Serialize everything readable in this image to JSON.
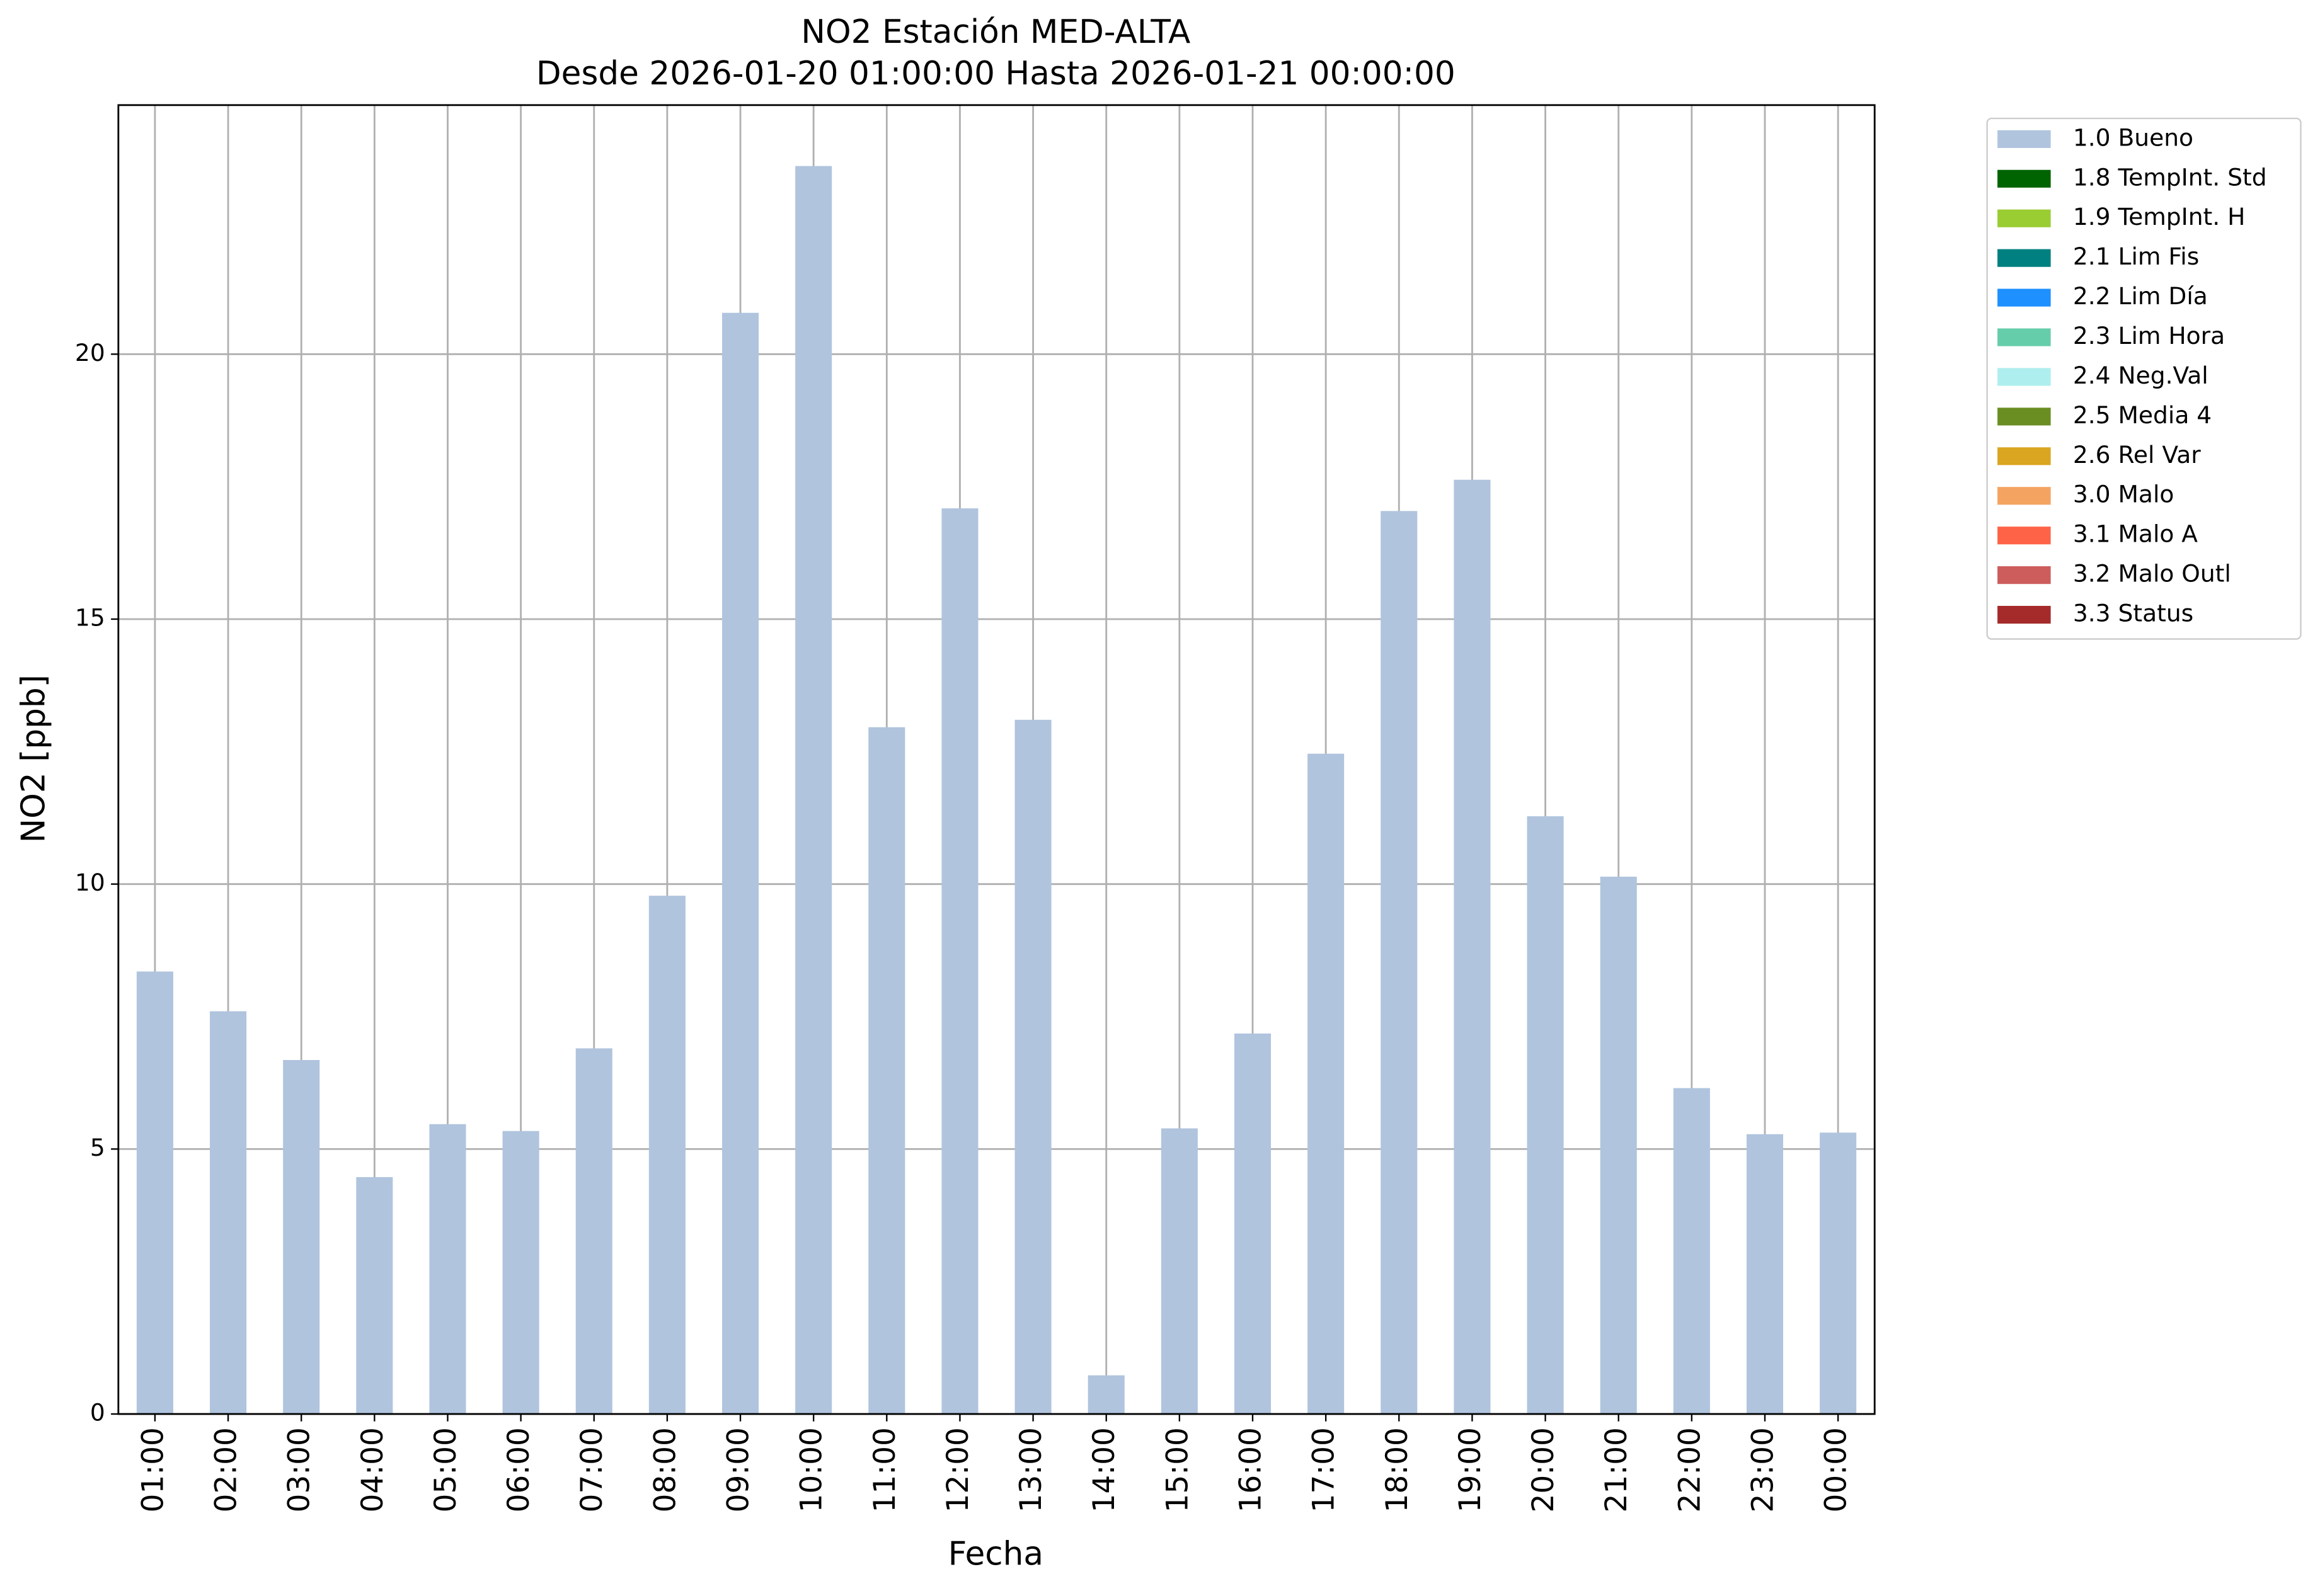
{
  "chart_data": {
    "type": "bar",
    "stacked": true,
    "title": "NO2 Estación MED-ALTA",
    "subtitle": "Desde 2026-01-20 01:00:00 Hasta 2026-01-21 00:00:00",
    "x_label": "Fecha",
    "y_label": "NO2 [ppb]",
    "categories": [
      "01:00",
      "02:00",
      "03:00",
      "04:00",
      "05:00",
      "06:00",
      "07:00",
      "08:00",
      "09:00",
      "10:00",
      "11:00",
      "12:00",
      "13:00",
      "14:00",
      "15:00",
      "16:00",
      "17:00",
      "18:00",
      "19:00",
      "20:00",
      "21:00",
      "22:00",
      "23:00",
      "00:00"
    ],
    "series": [
      {
        "name": "1.0 Bueno",
        "color": "#b0c4de",
        "values": [
          8.35,
          7.6,
          6.68,
          4.47,
          5.47,
          5.34,
          6.9,
          9.78,
          20.78,
          23.55,
          12.96,
          17.09,
          13.1,
          0.73,
          5.39,
          7.18,
          12.46,
          17.04,
          17.63,
          11.28,
          10.14,
          6.15,
          5.28,
          5.31
        ]
      },
      {
        "name": "1.8 TempInt. Std",
        "color": "#006400",
        "values": [
          null,
          null,
          null,
          null,
          null,
          null,
          null,
          null,
          null,
          null,
          null,
          null,
          null,
          null,
          null,
          null,
          null,
          null,
          null,
          null,
          null,
          null,
          null,
          null
        ]
      },
      {
        "name": "1.9 TempInt. H",
        "color": "#9acd32",
        "values": [
          null,
          null,
          null,
          null,
          null,
          null,
          null,
          null,
          null,
          null,
          null,
          null,
          null,
          null,
          null,
          null,
          null,
          null,
          null,
          null,
          null,
          null,
          null,
          null
        ]
      },
      {
        "name": "2.1 Lim Fis",
        "color": "#008080",
        "values": [
          null,
          null,
          null,
          null,
          null,
          null,
          null,
          null,
          null,
          null,
          null,
          null,
          null,
          null,
          null,
          null,
          null,
          null,
          null,
          null,
          null,
          null,
          null,
          null
        ]
      },
      {
        "name": "2.2 Lim Día",
        "color": "#1e90ff",
        "values": [
          null,
          null,
          null,
          null,
          null,
          null,
          null,
          null,
          null,
          null,
          null,
          null,
          null,
          null,
          null,
          null,
          null,
          null,
          null,
          null,
          null,
          null,
          null,
          null
        ]
      },
      {
        "name": "2.3 Lim Hora",
        "color": "#66cdaa",
        "values": [
          null,
          null,
          null,
          null,
          null,
          null,
          null,
          null,
          null,
          null,
          null,
          null,
          null,
          null,
          null,
          null,
          null,
          null,
          null,
          null,
          null,
          null,
          null,
          null
        ]
      },
      {
        "name": "2.4 Neg.Val",
        "color": "#afeeee",
        "values": [
          null,
          null,
          null,
          null,
          null,
          null,
          null,
          null,
          null,
          null,
          null,
          null,
          null,
          null,
          null,
          null,
          null,
          null,
          null,
          null,
          null,
          null,
          null,
          null
        ]
      },
      {
        "name": "2.5 Media 4",
        "color": "#6b8e23",
        "values": [
          null,
          null,
          null,
          null,
          null,
          null,
          null,
          null,
          null,
          null,
          null,
          null,
          null,
          null,
          null,
          null,
          null,
          null,
          null,
          null,
          null,
          null,
          null,
          null
        ]
      },
      {
        "name": "2.6 Rel Var",
        "color": "#daa520",
        "values": [
          null,
          null,
          null,
          null,
          null,
          null,
          null,
          null,
          null,
          null,
          null,
          null,
          null,
          null,
          null,
          null,
          null,
          null,
          null,
          null,
          null,
          null,
          null,
          null
        ]
      },
      {
        "name": "3.0 Malo",
        "color": "#f4a460",
        "values": [
          null,
          null,
          null,
          null,
          null,
          null,
          null,
          null,
          null,
          null,
          null,
          null,
          null,
          null,
          null,
          null,
          null,
          null,
          null,
          null,
          null,
          null,
          null,
          null
        ]
      },
      {
        "name": "3.1 Malo A",
        "color": "#ff6347",
        "values": [
          null,
          null,
          null,
          null,
          null,
          null,
          null,
          null,
          null,
          null,
          null,
          null,
          null,
          null,
          null,
          null,
          null,
          null,
          null,
          null,
          null,
          null,
          null,
          null
        ]
      },
      {
        "name": "3.2 Malo Outl",
        "color": "#cd5c5c",
        "values": [
          null,
          null,
          null,
          null,
          null,
          null,
          null,
          null,
          null,
          null,
          null,
          null,
          null,
          null,
          null,
          null,
          null,
          null,
          null,
          null,
          null,
          null,
          null,
          null
        ]
      },
      {
        "name": "3.3 Status",
        "color": "#a52a2a",
        "values": [
          null,
          null,
          null,
          null,
          null,
          null,
          null,
          null,
          null,
          null,
          null,
          null,
          null,
          null,
          null,
          null,
          null,
          null,
          null,
          null,
          null,
          null,
          null,
          null
        ]
      }
    ],
    "ylim": [
      0,
      24.7
    ],
    "yticks": [
      0,
      5,
      10,
      15,
      20
    ],
    "grid": true,
    "legend_loc": "outside upper right"
  }
}
